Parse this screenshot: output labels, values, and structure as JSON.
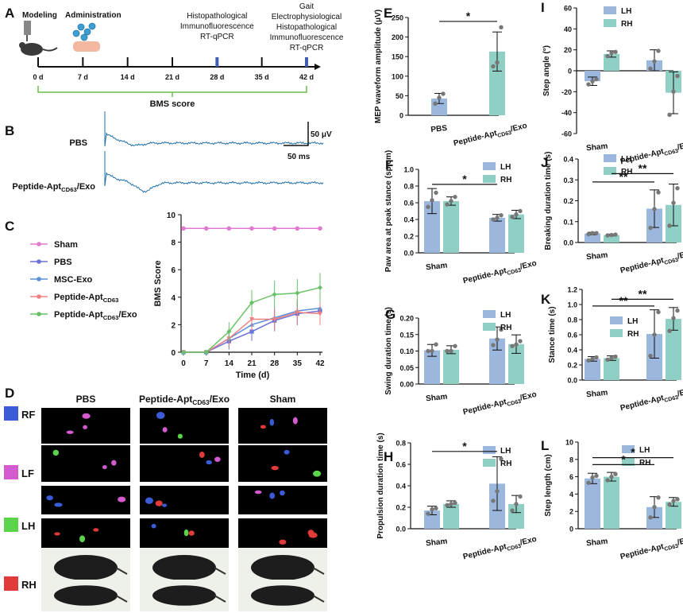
{
  "colors": {
    "lh": "#9bb7de",
    "rh": "#8fcfc4",
    "trace": "#1f6fa8",
    "sham": "#e07ad0",
    "pbs": "#6b6fd6",
    "msc": "#5a8fd8",
    "apt": "#f08080",
    "aptexo": "#66c266"
  },
  "panelA": {
    "letter": "A",
    "modeling": "Modeling",
    "administration": "Administration",
    "note28": [
      "Histopathological",
      "Immunofluorescence",
      "RT-qPCR"
    ],
    "note42": [
      "Gait",
      "Electrophysiological",
      "Histopathological",
      "Immunofluorescence",
      "RT-qPCR"
    ],
    "ticks": [
      "0 d",
      "7 d",
      "14 d",
      "21 d",
      "28 d",
      "35 d",
      "42 d"
    ],
    "bms": "BMS score"
  },
  "panelB": {
    "letter": "B",
    "pbs": "PBS",
    "exo_base": "Peptide-Apt",
    "exo_sub": "CD63",
    "exo_tail": "/Exo",
    "scale_v": "50 μV",
    "scale_t": "50 ms"
  },
  "panelD": {
    "letter": "D",
    "cols": [
      {
        "base": "PBS",
        "sub": "",
        "tail": ""
      },
      {
        "base": "Peptide-Apt",
        "sub": "CD63",
        "tail": "/Exo"
      },
      {
        "base": "Sham",
        "sub": "",
        "tail": ""
      }
    ],
    "rows": [
      "RF",
      "LF",
      "LH",
      "RH"
    ]
  },
  "chart_data": [
    {
      "panel": "C",
      "type": "line",
      "xlabel": "Time (d)",
      "ylabel": "BMS Score",
      "x": [
        0,
        7,
        14,
        21,
        28,
        35,
        42
      ],
      "ylim": [
        0,
        10
      ],
      "yticks": [
        0,
        2,
        4,
        6,
        8,
        10
      ],
      "series": [
        {
          "name": "Sham",
          "color_key": "sham",
          "values": [
            9,
            9,
            9,
            9,
            9,
            9,
            9
          ]
        },
        {
          "name": "PBS",
          "color_key": "pbs",
          "values": [
            0,
            0,
            0.8,
            1.5,
            2.3,
            2.8,
            3.0
          ]
        },
        {
          "name": "MSC-Exo",
          "color_key": "msc",
          "values": [
            0,
            0,
            1.0,
            2.0,
            2.5,
            3.0,
            3.2
          ]
        },
        {
          "name": "Peptide-Apt",
          "sub": "CD63",
          "color_key": "apt",
          "values": [
            0,
            0,
            1.0,
            2.4,
            2.4,
            2.9,
            2.8
          ]
        },
        {
          "name": "Peptide-Apt",
          "sub": "CD63",
          "tail": "/Exo",
          "color_key": "aptexo",
          "values": [
            0,
            0,
            1.5,
            3.6,
            4.2,
            4.3,
            4.7
          ]
        }
      ]
    },
    {
      "panel": "E",
      "type": "bar",
      "ylabel": "MEP waveform amplitude (μV)",
      "ylim": [
        0,
        250
      ],
      "yticks": [
        0,
        50,
        100,
        150,
        200,
        250
      ],
      "categories": [
        {
          "base": "PBS"
        },
        {
          "base": "Peptide-Apt",
          "sub": "CD63",
          "tail": "/Exo"
        }
      ],
      "values": [
        43,
        163
      ],
      "errors": [
        13,
        50
      ],
      "dots": [
        [
          30,
          45,
          55
        ],
        [
          125,
          135,
          225
        ]
      ],
      "sig": [
        {
          "text": "*",
          "from": 0,
          "to": 1,
          "y": 240
        }
      ]
    },
    {
      "panel": "F",
      "type": "bar",
      "ylabel": "Paw area at peak stance (sp.cm)",
      "ylim": [
        0,
        1.0
      ],
      "yticks": [
        0.0,
        0.2,
        0.4,
        0.6,
        0.8,
        1.0
      ],
      "categories": [
        {
          "base": "Sham"
        },
        {
          "base": "Peptide-Apt",
          "sub": "CD63",
          "tail": "/Exo"
        }
      ],
      "series": [
        {
          "name": "LH",
          "values": [
            0.62,
            0.42
          ],
          "errors": [
            0.15,
            0.04
          ],
          "dots": [
            [
              0.55,
              0.63,
              0.72
            ],
            [
              0.4,
              0.42,
              0.45
            ]
          ]
        },
        {
          "name": "RH",
          "values": [
            0.62,
            0.46
          ],
          "errors": [
            0.05,
            0.05
          ],
          "dots": [
            [
              0.58,
              0.62,
              0.67
            ],
            [
              0.43,
              0.46,
              0.5
            ]
          ]
        }
      ],
      "sig": [
        {
          "text": "*",
          "from": 0,
          "to": 2,
          "y": 0.82
        }
      ]
    },
    {
      "panel": "G",
      "type": "bar",
      "ylabel": "Swing duration time (s)",
      "ylim": [
        0,
        0.2
      ],
      "yticks": [
        0.0,
        0.05,
        0.1,
        0.15,
        0.2
      ],
      "categories": [
        {
          "base": "Sham"
        },
        {
          "base": "Peptide-Apt",
          "sub": "CD63",
          "tail": "/Exo"
        }
      ],
      "series": [
        {
          "name": "LH",
          "values": [
            0.102,
            0.138
          ],
          "errors": [
            0.018,
            0.035
          ],
          "dots": [
            [
              0.1,
              0.1,
              0.12
            ],
            [
              0.118,
              0.135,
              0.165
            ]
          ]
        },
        {
          "name": "RH",
          "values": [
            0.104,
            0.121
          ],
          "errors": [
            0.012,
            0.028
          ],
          "dots": [
            [
              0.1,
              0.1,
              0.115
            ],
            [
              0.115,
              0.12,
              0.13
            ]
          ]
        }
      ],
      "sig": []
    },
    {
      "panel": "H",
      "type": "bar",
      "ylabel": "Propulsion duration time (s)",
      "ylim": [
        0,
        0.8
      ],
      "yticks": [
        0.0,
        0.2,
        0.4,
        0.6,
        0.8
      ],
      "categories": [
        {
          "base": "Sham"
        },
        {
          "base": "Peptide-Apt",
          "sub": "CD63",
          "tail": "/Exo"
        }
      ],
      "series": [
        {
          "name": "LH",
          "values": [
            0.17,
            0.42
          ],
          "errors": [
            0.04,
            0.25
          ],
          "dots": [
            [
              0.14,
              0.18,
              0.19
            ],
            [
              0.26,
              0.35,
              0.65
            ]
          ]
        },
        {
          "name": "RH",
          "values": [
            0.23,
            0.23
          ],
          "errors": [
            0.03,
            0.08
          ],
          "dots": [
            [
              0.22,
              0.23,
              0.24
            ],
            [
              0.17,
              0.23,
              0.3
            ]
          ]
        }
      ],
      "sig": [
        {
          "text": "*",
          "from": 0,
          "to": 2,
          "y": 0.72
        }
      ]
    },
    {
      "panel": "I",
      "type": "bar",
      "ylabel": "Step angle (°)",
      "ylim": [
        -60,
        60
      ],
      "yticks": [
        -60,
        -40,
        -20,
        0,
        20,
        40,
        60
      ],
      "categories": [
        {
          "base": "Sham"
        },
        {
          "base": "Peptide-Apt",
          "sub": "CD63",
          "tail": "/Exo"
        }
      ],
      "series": [
        {
          "name": "LH",
          "values": [
            -10,
            10
          ],
          "errors": [
            4,
            10
          ],
          "dots": [
            [
              -13,
              -10,
              -8
            ],
            [
              2,
              9,
              19
            ]
          ]
        },
        {
          "name": "RH",
          "values": [
            16,
            -21
          ],
          "errors": [
            3,
            20
          ],
          "dots": [
            [
              14,
              17,
              18
            ],
            [
              -42,
              -20,
              -5
            ]
          ]
        }
      ],
      "sig": []
    },
    {
      "panel": "J",
      "type": "bar",
      "ylabel": "Breaking duration time (s)",
      "ylim": [
        0,
        0.4
      ],
      "yticks": [
        0.0,
        0.1,
        0.2,
        0.3,
        0.4
      ],
      "categories": [
        {
          "base": "Sham"
        },
        {
          "base": "Peptide-Apt",
          "sub": "CD63",
          "tail": "/Exo"
        }
      ],
      "series": [
        {
          "name": "LH",
          "values": [
            0.043,
            0.162
          ],
          "errors": [
            0.006,
            0.09
          ],
          "dots": [
            [
              0.04,
              0.045,
              0.045
            ],
            [
              0.07,
              0.16,
              0.24
            ]
          ]
        },
        {
          "name": "RH",
          "values": [
            0.036,
            0.18
          ],
          "errors": [
            0.004,
            0.1
          ],
          "dots": [
            [
              0.034,
              0.036,
              0.038
            ],
            [
              0.08,
              0.19,
              0.26
            ]
          ]
        }
      ],
      "sig": [
        {
          "text": "**",
          "from": 0,
          "to": 2,
          "y": 0.29
        },
        {
          "text": "**",
          "from": 1,
          "to": 3,
          "y": 0.33
        }
      ]
    },
    {
      "panel": "K",
      "type": "bar",
      "ylabel": "Stance time (s)",
      "ylim": [
        0,
        1.2
      ],
      "yticks": [
        0.0,
        0.2,
        0.4,
        0.6,
        0.8,
        1.0,
        1.2
      ],
      "categories": [
        {
          "base": "Sham"
        },
        {
          "base": "Peptide-Apt",
          "sub": "CD63",
          "tail": "/Exo"
        }
      ],
      "series": [
        {
          "name": "LH",
          "values": [
            0.28,
            0.61
          ],
          "errors": [
            0.03,
            0.32
          ],
          "dots": [
            [
              0.26,
              0.28,
              0.3
            ],
            [
              0.32,
              0.6,
              0.9
            ]
          ]
        },
        {
          "name": "RH",
          "values": [
            0.29,
            0.81
          ],
          "errors": [
            0.03,
            0.15
          ],
          "dots": [
            [
              0.27,
              0.29,
              0.31
            ],
            [
              0.65,
              0.82,
              0.92
            ]
          ]
        }
      ],
      "sig": [
        {
          "text": "**",
          "from": 0,
          "to": 2,
          "y": 0.98
        },
        {
          "text": "**",
          "from": 1,
          "to": 3,
          "y": 1.07
        }
      ]
    },
    {
      "panel": "L",
      "type": "bar",
      "ylabel": "Step length (cm)",
      "ylim": [
        0,
        10
      ],
      "yticks": [
        0,
        2,
        4,
        6,
        8,
        10
      ],
      "categories": [
        {
          "base": "Sham"
        },
        {
          "base": "Peptide-Apt",
          "sub": "CD63",
          "tail": "/Exo"
        }
      ],
      "series": [
        {
          "name": "LH",
          "values": [
            5.8,
            2.5
          ],
          "errors": [
            0.6,
            1.2
          ],
          "dots": [
            [
              5.3,
              5.9,
              6.1
            ],
            [
              1.3,
              2.5,
              3.6
            ]
          ]
        },
        {
          "name": "RH",
          "values": [
            6.0,
            3.1
          ],
          "errors": [
            0.5,
            0.5
          ],
          "dots": [
            [
              5.6,
              6.0,
              6.3
            ],
            [
              2.8,
              3.2,
              3.4
            ]
          ]
        }
      ],
      "sig": [
        {
          "text": "*",
          "from": 0,
          "to": 2,
          "y": 7.4
        },
        {
          "text": "*",
          "from": 0,
          "to": 3,
          "y": 8.2
        }
      ]
    }
  ]
}
